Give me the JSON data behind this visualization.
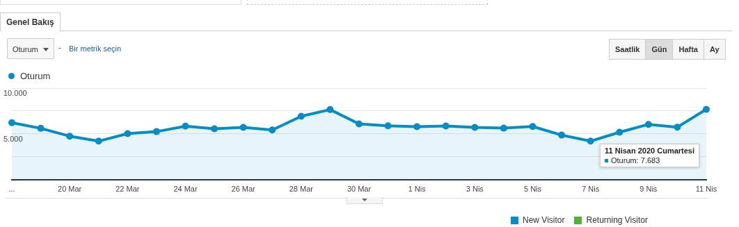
{
  "chart_data": [
    {
      "type": "other",
      "annotations": [
        "Genel Bakış",
        "Oturum",
        "-",
        "Bir metrik seçin",
        "Saatlik",
        "Gün",
        "Hafta",
        "Ay"
      ]
    },
    {
      "type": "area",
      "categories": [
        "...",
        null,
        "20 Mar",
        null,
        "22 Mar",
        null,
        "24 Mar",
        null,
        "26 Mar",
        null,
        "28 Mar",
        null,
        "30 Mar",
        null,
        "1 Nis",
        null,
        "3 Nis",
        null,
        "5 Nis",
        null,
        "7 Nis",
        null,
        "9 Nis",
        null,
        "11 Nis"
      ],
      "series": [
        {
          "name": "Oturum",
          "color": "#058dc7",
          "values": [
            6220,
            5610,
            4750,
            4210,
            5030,
            5250,
            5840,
            5560,
            5710,
            5430,
            6930,
            7660,
            6090,
            5890,
            5790,
            5860,
            5710,
            5630,
            5810,
            4870,
            4210,
            5180,
            6040,
            5740,
            7683
          ]
        }
      ],
      "ylim": [
        0,
        10000
      ],
      "yticks": [
        {
          "value": 0,
          "label": null
        },
        {
          "value": 2500,
          "label": null
        },
        {
          "value": 5000,
          "label": "5.000"
        },
        {
          "value": 7500,
          "label": null
        },
        {
          "value": 10000,
          "label": "10.000"
        }
      ],
      "grid": "y",
      "legend": "top left",
      "marker": "circle",
      "line_style": "solid",
      "annotations": [
        "11 Nisan 2020 Cumartesi",
        "Oturum: 7.683"
      ]
    },
    {
      "type": "other",
      "annotations": [
        "New Visitor",
        "Returning Visitor"
      ]
    }
  ]
}
